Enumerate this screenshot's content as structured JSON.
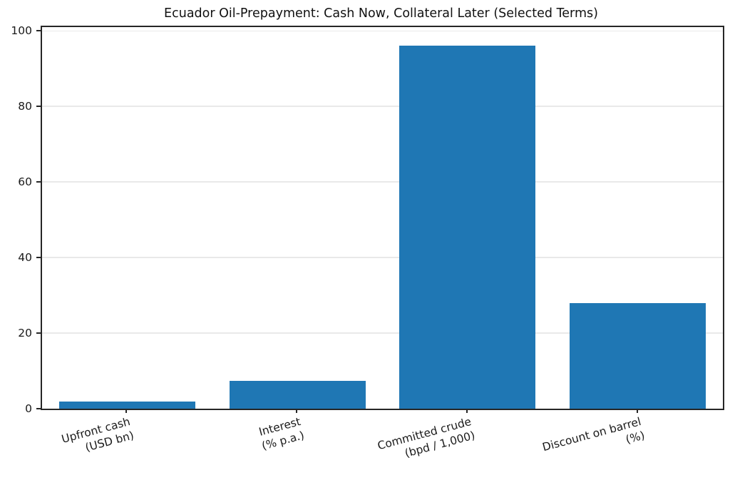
{
  "figure": {
    "background": "#ffffff",
    "text_color": "#1a1a1a",
    "spine_color": "#262626",
    "gridline_color": "#e9e9e9"
  },
  "chart_data": {
    "type": "bar",
    "title": "Ecuador Oil-Prepayment: Cash Now, Collateral Later (Selected Terms)",
    "categories": [
      "Upfront cash\n(USD bn)",
      "Interest\n(% p.a.)",
      "Committed crude\n(bpd / 1,000)",
      "Discount on barrel\n(%)"
    ],
    "values": [
      1.8,
      7.3,
      96,
      28
    ],
    "bar_color": "#1f77b4",
    "xlabel": "",
    "ylabel": "",
    "ylim": [
      0,
      100
    ],
    "yticks": [
      0,
      20,
      40,
      60,
      80,
      100
    ],
    "grid": "horizontal",
    "legend_position": "none",
    "x_tick_rotation_deg": 15
  }
}
